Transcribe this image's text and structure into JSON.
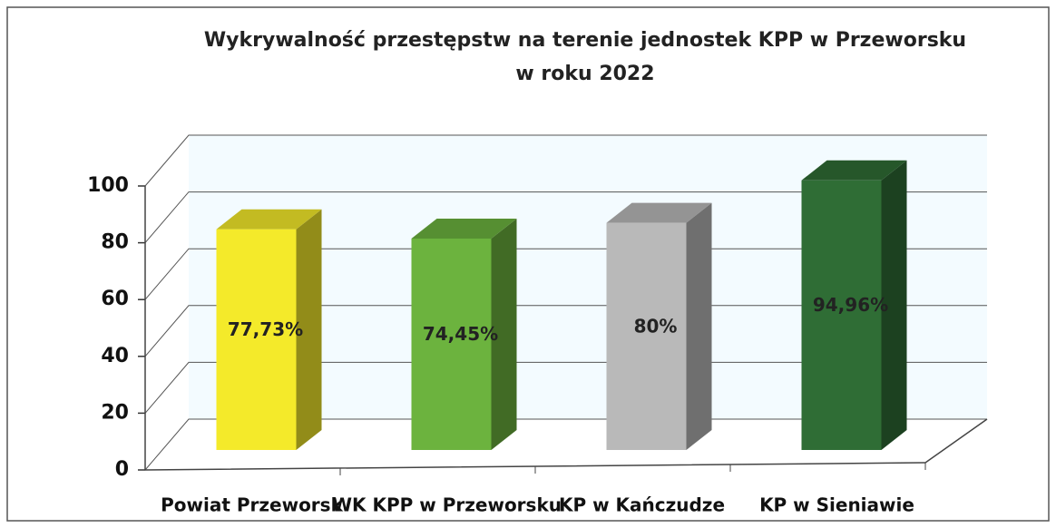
{
  "chart_data": {
    "type": "bar3d",
    "title": [
      "Wykrywalność przestępstw  na terenie jednostek KPP w Przeworsku",
      "w roku 2022"
    ],
    "categories": [
      "Powiat Przeworsk",
      "WK KPP w Przeworsku",
      "KP w Kańczudze",
      "KP w Sieniawie"
    ],
    "values": [
      77.73,
      74.45,
      80,
      94.96
    ],
    "value_labels": [
      "77,73%",
      "74,45%",
      "80%",
      "94,96%"
    ],
    "colors": [
      "#f4ea2a",
      "#6cb33e",
      "#b9b9b9",
      "#2f6d35"
    ],
    "ylim": [
      0,
      100
    ],
    "yticks": [
      0,
      20,
      40,
      60,
      80,
      100
    ],
    "grid": true
  }
}
